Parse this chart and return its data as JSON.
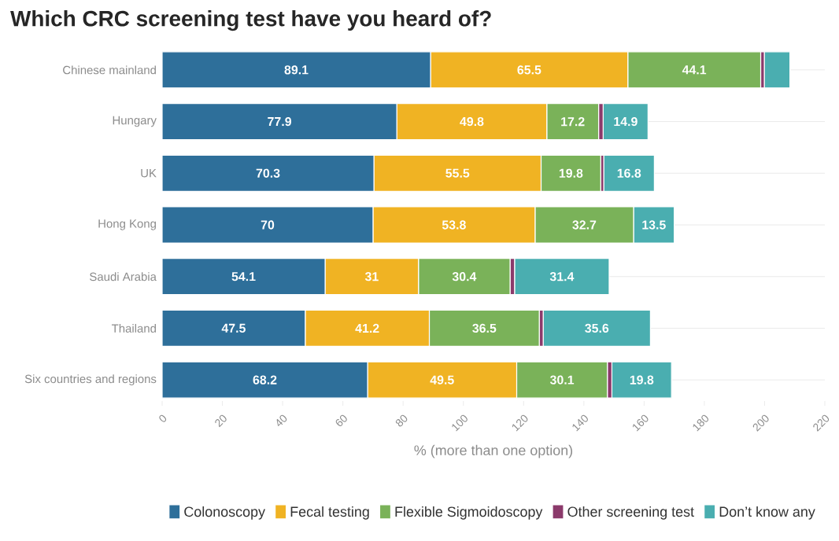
{
  "chart_data": {
    "type": "bar",
    "orientation": "horizontal",
    "stacked": true,
    "title": "Which CRC screening test have you heard of?",
    "xlabel": "% (more than one option)",
    "categories": [
      "Chinese mainland",
      "Hungary",
      "UK",
      "Hong Kong",
      "Saudi Arabia",
      "Thailand",
      "Six countries and regions"
    ],
    "series": [
      {
        "name": "Colonoscopy",
        "color": "#2e6f9a",
        "values": [
          89.1,
          77.9,
          70.3,
          70,
          54.1,
          47.5,
          68.2
        ],
        "value_labels": [
          "89.1",
          "77.9",
          "70.3",
          "70",
          "54.1",
          "47.5",
          "68.2"
        ]
      },
      {
        "name": "Fecal testing",
        "color": "#f0b323",
        "values": [
          65.5,
          49.8,
          55.5,
          53.8,
          31,
          41.2,
          49.5
        ],
        "value_labels": [
          "65.5",
          "49.8",
          "55.5",
          "53.8",
          "31",
          "41.2",
          "49.5"
        ]
      },
      {
        "name": "Flexible Sigmoidoscopy",
        "color": "#7ab259",
        "values": [
          44.1,
          17.2,
          19.8,
          32.7,
          30.4,
          36.5,
          30.1
        ],
        "value_labels": [
          "44.1",
          "17.2",
          "19.8",
          "32.7",
          "30.4",
          "36.5",
          "30.1"
        ]
      },
      {
        "name": "Other screening test",
        "color": "#8b3a6b",
        "values": [
          1.2,
          1.5,
          1,
          null,
          1.5,
          1.3,
          1.5
        ],
        "value_labels": [
          null,
          null,
          null,
          null,
          null,
          null,
          null
        ]
      },
      {
        "name": "Don’t know any",
        "color": "#4aaeb0",
        "values": [
          8.5,
          14.9,
          16.8,
          13.5,
          31.4,
          35.6,
          19.8
        ],
        "value_labels": [
          null,
          "14.9",
          "16.8",
          "13.5",
          "31.4",
          "35.6",
          "19.8"
        ]
      }
    ],
    "xlim": [
      0,
      220
    ],
    "xticks": [
      0,
      20,
      40,
      60,
      80,
      100,
      120,
      140,
      160,
      180,
      200,
      220
    ],
    "grid": "y",
    "legend": "bottom"
  }
}
